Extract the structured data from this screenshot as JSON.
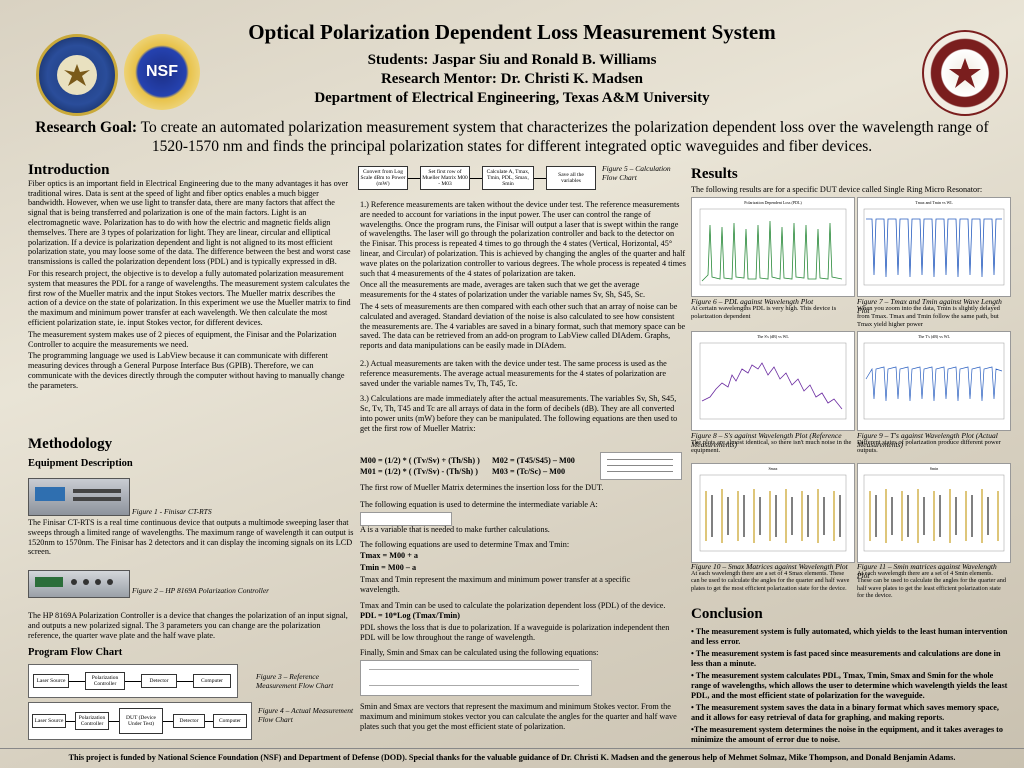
{
  "header": {
    "title": "Optical Polarization Dependent Loss Measurement System",
    "students": "Students: Jaspar Siu and Ronald B. Williams",
    "mentor": "Research Mentor: Dr. Christi K. Madsen",
    "department": "Department of Electrical Engineering, Texas A&M University"
  },
  "goal": {
    "label": "Research Goal:",
    "text": " To create an automated polarization measurement system that characterizes the polarization dependent loss over the wavelength range of 1520-1570 nm and finds the principal polarization states for different integrated optic waveguides and fiber devices."
  },
  "intro": {
    "heading": "Introduction",
    "p1": "Fiber optics is an important field in Electrical Engineering due to the many advantages it has over traditional wires. Data is sent at the speed of light and fiber optics enables a much bigger bandwidth. However, when we use light to transfer data, there are many factors that affect the signal that is being transferred and polarization is one of the main factors. Light is an electromagnetic wave. Polarization has to do with how the electric and magnetic fields align themselves. There are 3 types of polarization for light. They are linear, circular and elliptical polarization. If a device is polarization dependent and light is not aligned to its most efficient polarization state, you may loose some of the data. The difference between the best and worst case transmissions is called the polarization dependent loss (PDL) and is typically expressed in dB.",
    "p2": "For this research project, the objective is to develop a fully automated polarization measurement system that measures the PDL for a range of wavelengths. The measurement system calculates the first row of the Mueller matrix and the input Stokes vectors. The Mueller matrix describes the action of a device on the state of polarization. In this experiment we use the Mueller matrix to find the maximum and minimum power transfer at each wavelength. We then calculate the most efficient polarization state, ie. input Stokes vector, for different devices.",
    "p3": "The measurement system makes use of 2 pieces of equipment, the Finisar and the Polarization Controller to acquire the measurements we need.",
    "p4": "The programming language we used is LabView because it can communicate with different measuring devices through a General Purpose Interface Bus (GPIB). Therefore, we can communicate with the devices directly through the computer without having to manually change the parameters."
  },
  "method": {
    "heading": "Methodology",
    "equip": "Equipment Description",
    "fig1": "Figure 1 - Finisar CT-RTS",
    "finisar": "The Finisar CT-RTS is a real time continuous device that outputs a multimode sweeping laser that sweeps through a limited range of wavelengths. The maximum range of wavelength it can output is 1520nm to 1570nm. The Finisar has 2 detectors and it can display the incoming signals on its LCD screen.",
    "fig2": "Figure 2 – HP 8169A Polarization Controller",
    "hp": "The HP 8169A Polarization Controller is a device that changes the polarization of an input signal, and outputs a new polarized signal. The 3 parameters you can change are the polarization reference, the quarter wave plate and the half wave plate.",
    "flow": "Program Flow Chart",
    "fig3": "Figure 3 – Reference Measurement Flow Chart",
    "fig4": "Figure 4 – Actual Measurement Flow Chart",
    "flow3": [
      "Laser Source",
      "Polarization Controller",
      "Detector",
      "Computer"
    ],
    "flow4": [
      "Laser Source",
      "Polarization Controller",
      "DUT (Device Under Test)",
      "Detector",
      "Computer"
    ]
  },
  "middle": {
    "flow5": [
      "Convert from Log Scale dBm to Power (mW)",
      "Set first row of Mueller Matrix M00 - M03",
      "Calculate A, Tmax, Tmin, PDL, Smax, Smin",
      "Save all the variables"
    ],
    "fig5": "Figure 5 – Calculation Flow Chart",
    "p1": "1.) Reference measurements are taken without the device under test. The reference measurements are needed to account for variations in the input power. The user can control the range of wavelengths. Once the program runs, the Finisar will output a laser that is swept within the range of wavelengths. The laser will go through the polarization controller and back to the detector on the Finisar. This process is repeated 4 times to go through the 4 states (Vertical, Horizontal, 45° linear, and Circular) of polarization. This is achieved by changing the angles of the quarter and half wave plates on the polarization controller to various degrees. The whole process is repeated 4 times such that 4 measurements of the 4 states of polarization are taken.",
    "p2": "Once all the measurements are made, averages are taken such that we get the average measurements for the 4 states of polarization under the variable names Sv, Sh, S45, Sc.",
    "p3": "The 4 sets of measurements are then compared with each other such that an array of noise can be calculated and averaged. Standard deviation of the noise is also calculated to see how consistent the measurements are. The 4 variables are saved in a binary format, such that memory space can be saved. The data can be retrieved from an add-on program to LabView called DIAdem. Graphs, reports and data manipulations can be easily made in DIAdem.",
    "p4": "2.) Actual measurements are taken with the device under test. The same process is used as the reference measurements. The average actual measurements for the 4 states of polarization are saved under the variable names Tv, Th, T45, Tc.",
    "p5": "3.) Calculations are made immediately after the actual measurements. The variables Sv, Sh, S45, Sc, Tv, Th, T45 and Tc are all arrays of data in the form of decibels (dB). They are all converted into power units (mW) before they can be manipulated. The following equations are then used to get the first row of Mueller Matrix:",
    "eq1": "M00 = (1/2) * ( (Tv/Sv) + (Th/Sh) )",
    "eq2": "M02 = (T45/S45) – M00",
    "eq3": "M01 = (1/2) * ( (Tv/Sv) - (Th/Sh) )",
    "eq4": "M03 = (Tc/Sc) – M00",
    "p6": "The first row of Mueller Matrix determines the insertion loss for the DUT.",
    "p7": "The following equation is used to determine the intermediate variable A:",
    "p8": "A is a variable that is needed to make further calculations.",
    "p9": "The following equations are used to determine Tmax and Tmin:",
    "eq5": "Tmax = M00 + a",
    "eq6": "Tmin = M00 – a",
    "p10": "Tmax and Tmin represent the maximum and minimum power transfer at a specific wavelength.",
    "p11": "Tmax and Tmin can be used to calculate the polarization dependent loss (PDL) of the device.",
    "eq7": "PDL = 10*Log (Tmax/Tmin)",
    "p12": "PDL shows the loss that is due to polarization. If a waveguide is polarization independent then PDL will be low throughout the range of wavelength.",
    "p13": "Finally, Smin and Smax can be calculated using the following equations:",
    "p14": "Smin and Smax are vectors that represent the maximum and minimum Stokes vector. From the maximum and minimum stokes vector you can calculate the angles for the quarter and half wave plates such that you get the most efficient state of polarization."
  },
  "results": {
    "heading": "Results",
    "intro": "The following results are for a specific DUT device called Single Ring Micro Resonator:",
    "plot6_title": "Polarization Dependent Loss (PDL)",
    "plot7_title": "Tmax and Tmin vs WL",
    "fig6": "Figure 6 – PDL against Wavelength Plot",
    "fig6_txt": "At certain wavelengths PDL is very high. This device is polarization dependent",
    "fig7": "Figure 7 – Tmax and Tmin against Wave Length Plot",
    "fig7_txt": "When you zoom into the data, Tmin is slightly delayed from Tmax. Tmax and Tmin follow the same path, but Tmax yield higher power",
    "plot8_title": "The S's (dB) vs WL",
    "plot9_title": "The T's (dB) vs WL",
    "fig8": "Figure 8 – S's against Wavelength Plot (Reference Measurements)",
    "fig8_txt": "The plots are almost identical, so there isn't much noise in the equipment.",
    "fig9": "Figure 9 – T's against Wavelength Plot (Actual Measurements)",
    "fig9_txt": "Different states of polarization produce different power outputs.",
    "plot10_title": "Smax",
    "plot11_title": "Smin",
    "fig10": "Figure 10 – Smax Matrices against Wavelength Plot",
    "fig10_txt": "At each wavelength there are a set of 4 Smax elements. These can be used to calculate the angles for the quarter and half wave plates to get the most efficient polarization state for the device.",
    "fig11": "Figure 11 – Smin matrices against Wavelength Plot",
    "fig11_txt": "At each wavelength there are a set of 4 Smin elements. These can be used to calculate the angles for the quarter and half wave plates to get the least efficient polarization state for the device."
  },
  "conclusion": {
    "heading": "Conclusion",
    "items": [
      "• The measurement system is fully automated, which yields to the least human intervention and less error.",
      "• The measurement system is fast paced since measurements and calculations are done in less than a minute.",
      "• The measurement system calculates PDL, Tmax, Tmin, Smax and Smin for the whole range of wavelengths, which allows the user to determine which wavelength yields the least PDL, and the most efficient state of polarization for the waveguide.",
      "• The measurement system saves the data in a binary format which saves memory space, and it allows for easy retrieval of data for graphing, and making reports.",
      "•The measurement system determines the noise in the equipment, and it takes averages to minimize the amount of error due to noise."
    ]
  },
  "footer": "This project is funded by National Science Foundation (NSF) and Department of Defense (DOD). Special thanks for the valuable guidance of Dr. Christi K. Madsen and the generous help of Mehmet Solmaz, Mike Thompson, and Donald Benjamin Adams.",
  "logos": {
    "dod": "DOD",
    "nsf": "NSF",
    "tamu": "TAMU"
  }
}
